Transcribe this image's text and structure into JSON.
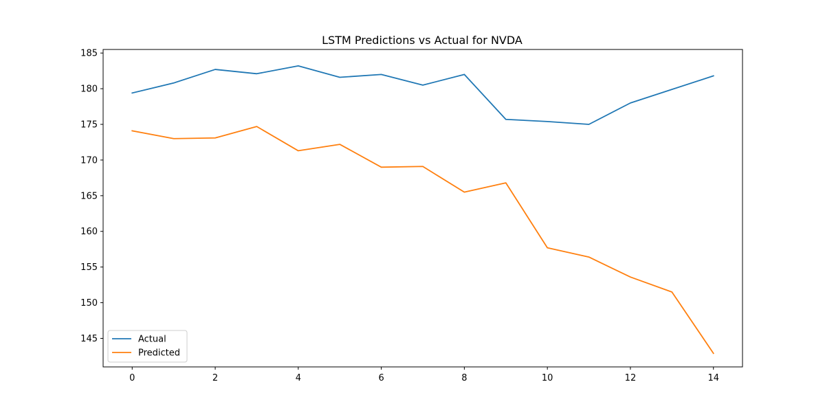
{
  "chart_data": {
    "type": "line",
    "title": "LSTM Predictions vs Actual for NVDA",
    "xlabel": "",
    "ylabel": "",
    "x": [
      0,
      1,
      2,
      3,
      4,
      5,
      6,
      7,
      8,
      9,
      10,
      11,
      12,
      13,
      14
    ],
    "xlim": [
      -0.7,
      14.7
    ],
    "ylim": [
      141.0,
      185.5
    ],
    "xticks": [
      0,
      2,
      4,
      6,
      8,
      10,
      12,
      14
    ],
    "yticks": [
      145,
      150,
      155,
      160,
      165,
      170,
      175,
      180,
      185
    ],
    "grid": false,
    "legend_position": "lower-left",
    "series": [
      {
        "name": "Actual",
        "color": "#1f77b4",
        "values": [
          179.4,
          180.8,
          182.7,
          182.1,
          183.2,
          181.6,
          182.0,
          180.5,
          182.0,
          175.7,
          175.4,
          175.0,
          178.0,
          179.9,
          181.8
        ]
      },
      {
        "name": "Predicted",
        "color": "#ff7f0e",
        "values": [
          174.1,
          173.0,
          173.1,
          174.7,
          171.3,
          172.2,
          169.0,
          169.1,
          165.5,
          166.8,
          157.7,
          156.4,
          153.6,
          151.5,
          142.9
        ]
      }
    ]
  }
}
